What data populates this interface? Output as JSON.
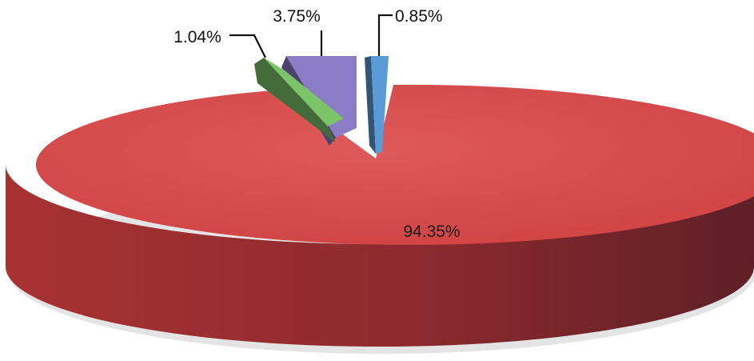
{
  "chart_data": {
    "type": "pie",
    "style": "3d-exploded",
    "slices": [
      {
        "label": "94.35%",
        "value": 94.35,
        "color": "#d94848"
      },
      {
        "label": "0.85%",
        "value": 0.85,
        "color": "#5b9bd5"
      },
      {
        "label": "3.75%",
        "value": 3.75,
        "color": "#8a7cc6"
      },
      {
        "label": "1.04%",
        "value": 1.04,
        "color": "#7cc46a"
      }
    ],
    "legend": "none"
  }
}
